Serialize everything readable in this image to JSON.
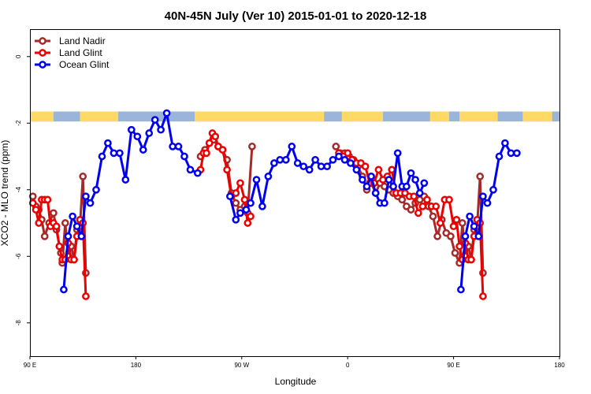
{
  "chart_data": {
    "type": "line",
    "title": "40N-45N July (Ver 10)   2015-01-01 to 2020-12-18",
    "xlabel": "Longitude",
    "ylabel": "XCO2 - MLO trend (ppm)",
    "xlim": [
      90,
      450
    ],
    "ylim": [
      -9,
      0.8
    ],
    "x_ticks": [
      {
        "value": 90,
        "label": "90 E"
      },
      {
        "value": 162,
        "label": "180"
      },
      {
        "value": 234,
        "label": "90 W"
      },
      {
        "value": 306,
        "label": "0"
      },
      {
        "value": 378,
        "label": "90 E"
      },
      {
        "value": 450,
        "label": "180"
      }
    ],
    "y_ticks": [
      {
        "value": 0,
        "label": "0"
      },
      {
        "value": -2,
        "label": "-2"
      },
      {
        "value": -4,
        "label": "-4"
      },
      {
        "value": -6,
        "label": "-6"
      },
      {
        "value": -8,
        "label": "-8"
      }
    ],
    "legend_position": "top-left",
    "land_sea_band": {
      "y_range": [
        -1.65,
        -1.95
      ],
      "land_color": "#ffd966",
      "ocean_color": "#9bb5da"
    },
    "series": [
      {
        "name": "Land Nadir",
        "color": "#a52a2a",
        "points": [
          [
            92,
            -4.2
          ],
          [
            94,
            -4.5
          ],
          [
            96,
            -4.6
          ],
          [
            98,
            -4.9
          ],
          [
            100,
            -5.4
          ],
          [
            103,
            -5.0
          ],
          [
            106,
            -4.7
          ],
          [
            108,
            -5.2
          ],
          [
            111,
            -5.9
          ],
          [
            112,
            -6.2
          ],
          [
            114,
            -5.0
          ],
          [
            116,
            -6.0
          ],
          [
            118,
            -5.7
          ],
          [
            120,
            -6.1
          ],
          [
            122,
            -5.2
          ],
          [
            124,
            -5.1
          ],
          [
            126,
            -3.6
          ],
          [
            128,
            -6.5
          ],
          [
            206,
            -3.0
          ],
          [
            209,
            -2.8
          ],
          [
            212,
            -2.6
          ],
          [
            215,
            -2.5
          ],
          [
            218,
            -2.7
          ],
          [
            221,
            -2.8
          ],
          [
            224,
            -3.1
          ],
          [
            227,
            -4.1
          ],
          [
            230,
            -4.4
          ],
          [
            233,
            -4.6
          ],
          [
            236,
            -4.5
          ],
          [
            238,
            -4.7
          ],
          [
            241,
            -2.7
          ],
          [
            298,
            -2.7
          ],
          [
            301,
            -2.9
          ],
          [
            304,
            -2.9
          ],
          [
            307,
            -3.0
          ],
          [
            310,
            -3.1
          ],
          [
            313,
            -3.3
          ],
          [
            316,
            -3.6
          ],
          [
            319,
            -4.0
          ],
          [
            322,
            -3.8
          ],
          [
            325,
            -4.1
          ],
          [
            328,
            -3.8
          ],
          [
            331,
            -3.9
          ],
          [
            334,
            -4.0
          ],
          [
            337,
            -4.1
          ],
          [
            340,
            -4.2
          ],
          [
            343,
            -4.3
          ],
          [
            346,
            -4.5
          ],
          [
            349,
            -4.6
          ],
          [
            352,
            -4.4
          ],
          [
            355,
            -4.3
          ],
          [
            358,
            -4.2
          ],
          [
            361,
            -4.5
          ],
          [
            364,
            -4.8
          ],
          [
            367,
            -5.4
          ],
          [
            370,
            -4.9
          ],
          [
            373,
            -5.3
          ],
          [
            376,
            -5.4
          ],
          [
            379,
            -5.9
          ],
          [
            382,
            -6.2
          ],
          [
            384,
            -5.0
          ],
          [
            386,
            -6.0
          ],
          [
            388,
            -5.7
          ],
          [
            390,
            -6.1
          ],
          [
            392,
            -5.2
          ],
          [
            394,
            -5.1
          ],
          [
            396,
            -3.6
          ],
          [
            398,
            -6.5
          ]
        ]
      },
      {
        "name": "Land Glint",
        "color": "#ee0000",
        "points": [
          [
            92,
            -4.4
          ],
          [
            94,
            -4.6
          ],
          [
            96,
            -5.0
          ],
          [
            98,
            -4.3
          ],
          [
            100,
            -4.3
          ],
          [
            102,
            -4.3
          ],
          [
            104,
            -5.1
          ],
          [
            106,
            -5.0
          ],
          [
            108,
            -5.1
          ],
          [
            110,
            -5.7
          ],
          [
            112,
            -6.1
          ],
          [
            114,
            -6.1
          ],
          [
            116,
            -5.6
          ],
          [
            118,
            -6.1
          ],
          [
            120,
            -6.1
          ],
          [
            122,
            -5.4
          ],
          [
            124,
            -4.9
          ],
          [
            126,
            -5.0
          ],
          [
            128,
            -7.2
          ],
          [
            206,
            -3.4
          ],
          [
            208,
            -2.9
          ],
          [
            210,
            -2.9
          ],
          [
            212,
            -2.6
          ],
          [
            214,
            -2.3
          ],
          [
            216,
            -2.4
          ],
          [
            218,
            -2.7
          ],
          [
            221,
            -2.8
          ],
          [
            224,
            -3.4
          ],
          [
            227,
            -4.2
          ],
          [
            230,
            -4.1
          ],
          [
            233,
            -3.8
          ],
          [
            236,
            -4.3
          ],
          [
            238,
            -5.0
          ],
          [
            240,
            -4.8
          ],
          [
            300,
            -2.9
          ],
          [
            303,
            -3.0
          ],
          [
            306,
            -2.9
          ],
          [
            309,
            -3.1
          ],
          [
            312,
            -3.2
          ],
          [
            315,
            -3.2
          ],
          [
            318,
            -3.3
          ],
          [
            321,
            -3.8
          ],
          [
            324,
            -3.8
          ],
          [
            327,
            -3.4
          ],
          [
            330,
            -3.7
          ],
          [
            333,
            -3.6
          ],
          [
            336,
            -3.4
          ],
          [
            339,
            -4.1
          ],
          [
            342,
            -4.1
          ],
          [
            345,
            -4.1
          ],
          [
            348,
            -4.2
          ],
          [
            351,
            -4.2
          ],
          [
            354,
            -4.7
          ],
          [
            357,
            -4.5
          ],
          [
            360,
            -4.3
          ],
          [
            363,
            -4.5
          ],
          [
            366,
            -4.5
          ],
          [
            369,
            -5.0
          ],
          [
            372,
            -4.3
          ],
          [
            375,
            -4.3
          ],
          [
            378,
            -5.1
          ],
          [
            380,
            -4.9
          ],
          [
            382,
            -5.7
          ],
          [
            384,
            -6.1
          ],
          [
            386,
            -5.6
          ],
          [
            388,
            -6.1
          ],
          [
            390,
            -6.1
          ],
          [
            392,
            -5.4
          ],
          [
            394,
            -4.9
          ],
          [
            396,
            -5.0
          ],
          [
            398,
            -7.2
          ]
        ]
      },
      {
        "name": "Ocean Glint",
        "color": "#0000ee",
        "points": [
          [
            113,
            -7.0
          ],
          [
            116,
            -5.4
          ],
          [
            119,
            -4.8
          ],
          [
            122,
            -5.1
          ],
          [
            125,
            -5.4
          ],
          [
            128,
            -4.2
          ],
          [
            131,
            -4.4
          ],
          [
            135,
            -4.0
          ],
          [
            139,
            -3.0
          ],
          [
            143,
            -2.6
          ],
          [
            147,
            -2.9
          ],
          [
            151,
            -2.9
          ],
          [
            155,
            -3.7
          ],
          [
            159,
            -2.2
          ],
          [
            163,
            -2.4
          ],
          [
            167,
            -2.8
          ],
          [
            171,
            -2.3
          ],
          [
            175,
            -1.9
          ],
          [
            179,
            -2.2
          ],
          [
            183,
            -1.7
          ],
          [
            187,
            -2.7
          ],
          [
            191,
            -2.7
          ],
          [
            195,
            -3.0
          ],
          [
            199,
            -3.4
          ],
          [
            204,
            -3.5
          ],
          [
            226,
            -4.2
          ],
          [
            230,
            -4.9
          ],
          [
            233,
            -4.7
          ],
          [
            237,
            -4.6
          ],
          [
            240,
            -4.4
          ],
          [
            244,
            -3.7
          ],
          [
            248,
            -4.5
          ],
          [
            252,
            -3.6
          ],
          [
            256,
            -3.2
          ],
          [
            260,
            -3.1
          ],
          [
            264,
            -3.1
          ],
          [
            268,
            -2.7
          ],
          [
            272,
            -3.2
          ],
          [
            276,
            -3.3
          ],
          [
            280,
            -3.4
          ],
          [
            284,
            -3.1
          ],
          [
            288,
            -3.3
          ],
          [
            292,
            -3.3
          ],
          [
            296,
            -3.1
          ],
          [
            300,
            -3.0
          ],
          [
            304,
            -3.1
          ],
          [
            308,
            -3.2
          ],
          [
            312,
            -3.4
          ],
          [
            316,
            -3.7
          ],
          [
            319,
            -3.9
          ],
          [
            322,
            -3.6
          ],
          [
            325,
            -4.1
          ],
          [
            328,
            -4.4
          ],
          [
            331,
            -4.4
          ],
          [
            334,
            -3.7
          ],
          [
            337,
            -3.9
          ],
          [
            340,
            -2.9
          ],
          [
            343,
            -3.9
          ],
          [
            346,
            -3.9
          ],
          [
            349,
            -3.5
          ],
          [
            352,
            -3.7
          ],
          [
            355,
            -4.1
          ],
          [
            358,
            -3.8
          ],
          [
            383,
            -7.0
          ],
          [
            386,
            -5.4
          ],
          [
            389,
            -4.8
          ],
          [
            392,
            -5.1
          ],
          [
            395,
            -5.4
          ],
          [
            398,
            -4.2
          ],
          [
            401,
            -4.4
          ],
          [
            405,
            -4.0
          ],
          [
            409,
            -3.0
          ],
          [
            413,
            -2.6
          ],
          [
            417,
            -2.9
          ],
          [
            421,
            -2.9
          ]
        ]
      }
    ]
  }
}
